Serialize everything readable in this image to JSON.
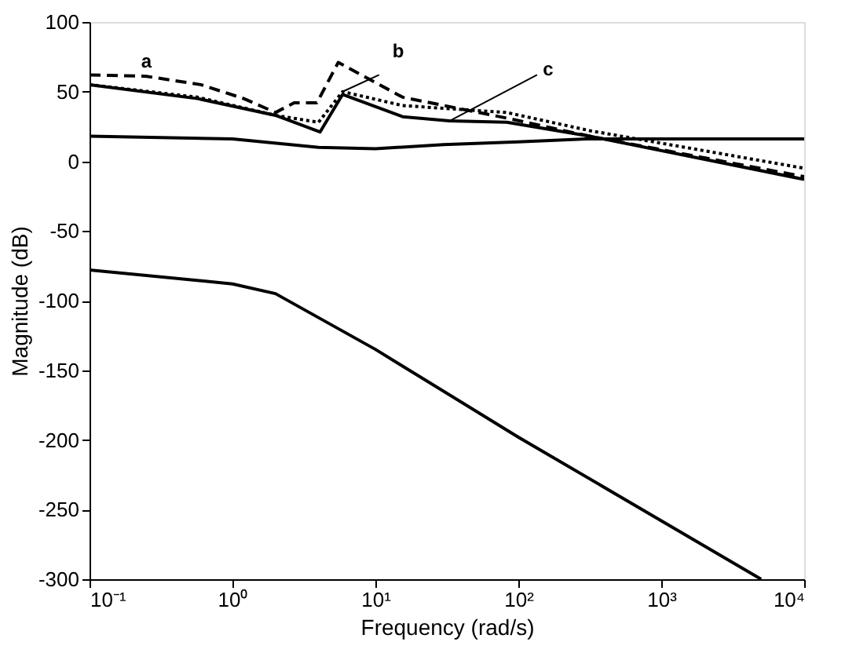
{
  "chart_data": {
    "type": "line",
    "xlabel": "Frequency (rad/s)",
    "ylabel": "Magnitude (dB)",
    "log": "x",
    "xlim": [
      0.1,
      10000
    ],
    "ylim": [
      -300,
      100
    ],
    "xticks": [
      {
        "value": 0.1,
        "label": "10⁻¹"
      },
      {
        "value": 1,
        "label": "10⁰"
      },
      {
        "value": 10,
        "label": "10¹"
      },
      {
        "value": 100,
        "label": "10²"
      },
      {
        "value": 1000,
        "label": "10³"
      },
      {
        "value": 10000,
        "label": "10⁴"
      }
    ],
    "yticks": [
      -300,
      -250,
      -200,
      -150,
      -100,
      -50,
      0,
      50,
      100
    ],
    "grid": false,
    "marker": "none",
    "series": [
      {
        "color": "#000000",
        "line_style": "dashed",
        "x": [
          0.1,
          0.25,
          0.6,
          1.2,
          2,
          2.7,
          3.9,
          5.5,
          15.5,
          83,
          316,
          10000
        ],
        "values": [
          62,
          61,
          55,
          45,
          35,
          42,
          42,
          71,
          46,
          31,
          18,
          -11
        ]
      },
      {
        "color": "#000000",
        "line_style": "dotted",
        "x": [
          0.1,
          0.57,
          2,
          4,
          5.9,
          15.5,
          83,
          316,
          10000
        ],
        "values": [
          55,
          46,
          33,
          28,
          50,
          40,
          35,
          22,
          -5
        ]
      },
      {
        "color": "#000000",
        "line_style": "solid",
        "x": [
          0.1,
          0.57,
          2,
          4.1,
          5.9,
          15.5,
          33,
          83,
          316,
          10000
        ],
        "values": [
          55,
          45,
          33,
          21,
          48,
          32,
          29,
          28,
          18,
          -13
        ]
      },
      {
        "color": "#000000",
        "line_style": "solid",
        "x": [
          0.1,
          1,
          4,
          10,
          30,
          100,
          300,
          10000
        ],
        "values": [
          18,
          16,
          10,
          9,
          12,
          14,
          16,
          16
        ]
      },
      {
        "color": "#000000",
        "line_style": "solid",
        "x": [
          0.1,
          1,
          2,
          10,
          100,
          1000,
          5000
        ],
        "values": [
          -78,
          -88,
          -95,
          -135,
          -198,
          -258,
          -300
        ]
      }
    ],
    "annotations": [
      {
        "text": "a",
        "x": 0.25,
        "y": 61
      },
      {
        "text": "b",
        "x": 5.9,
        "y": 50
      },
      {
        "text": "c",
        "x": 33,
        "y": 29
      }
    ]
  }
}
